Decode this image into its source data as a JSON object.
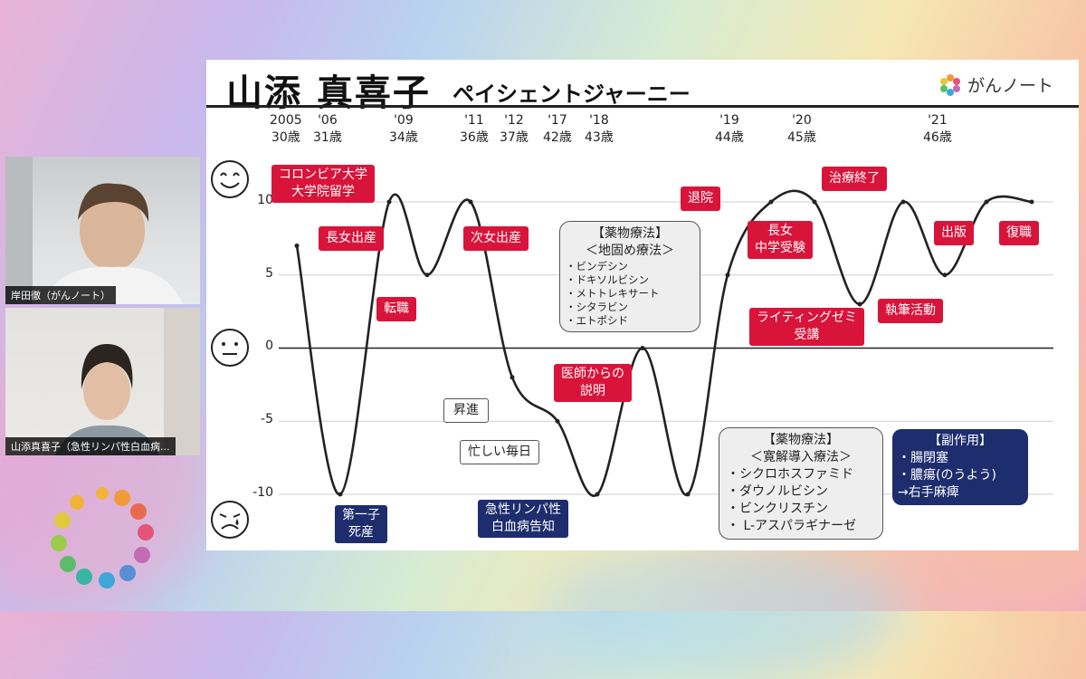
{
  "participants": [
    {
      "name": "岸田徹（がんノート）"
    },
    {
      "name": "山添真喜子（急性リンパ性白血病..."
    }
  ],
  "slide": {
    "title": "山添 真喜子",
    "subtitle": "ペイシェントジャーニー",
    "brand": "がんノート"
  },
  "chart_data": {
    "type": "line",
    "ylim": [
      -10,
      10
    ],
    "y_ticks": [
      "10",
      "5",
      "0",
      "-5",
      "-10"
    ],
    "year_labels": [
      {
        "year": "2005",
        "age": "30歳"
      },
      {
        "year": "'06",
        "age": "31歳"
      },
      {
        "year": "'09",
        "age": "34歳"
      },
      {
        "year": "'11",
        "age": "36歳"
      },
      {
        "year": "'12",
        "age": "37歳"
      },
      {
        "year": "'17",
        "age": "42歳"
      },
      {
        "year": "'18",
        "age": "43歳"
      },
      {
        "year": "'19",
        "age": "44歳"
      },
      {
        "year": "'20",
        "age": "45歳"
      },
      {
        "year": "'21",
        "age": "46歳"
      }
    ],
    "points": [
      {
        "x": 0,
        "y": 7
      },
      {
        "x": 1,
        "y": -10
      },
      {
        "x": 2,
        "y": 10
      },
      {
        "x": 3,
        "y": 5
      },
      {
        "x": 4,
        "y": 10
      },
      {
        "x": 5,
        "y": -2
      },
      {
        "x": 6,
        "y": -5
      },
      {
        "x": 7,
        "y": -10
      },
      {
        "x": 8,
        "y": 0
      },
      {
        "x": 9,
        "y": -10
      },
      {
        "x": 10,
        "y": 5
      },
      {
        "x": 11,
        "y": 10
      },
      {
        "x": 12,
        "y": 10
      },
      {
        "x": 13,
        "y": 3
      },
      {
        "x": 14,
        "y": 10
      },
      {
        "x": 15,
        "y": 5
      },
      {
        "x": 16,
        "y": 10
      },
      {
        "x": 17,
        "y": 10
      }
    ],
    "events": {
      "colombia": [
        "コロンビア大学",
        "大学院留学"
      ],
      "first_daughter": "長女出産",
      "job_change": "転職",
      "second_daughter": "次女出産",
      "promotion": "昇進",
      "busy": "忙しい毎日",
      "stillbirth": [
        "第一子",
        "死産"
      ],
      "leukemia": [
        "急性リンパ性",
        "白血病告知"
      ],
      "doctor": [
        "医師からの",
        "説明"
      ],
      "discharge": "退院",
      "exam": [
        "長女",
        "中学受験"
      ],
      "treatment_end": "治療終了",
      "writing_seminar": [
        "ライティングゼミ",
        "受講"
      ],
      "writing": "執筆活動",
      "publish": "出版",
      "return_work": "復職"
    },
    "drug_box_1": {
      "heading": [
        "【薬物療法】",
        "＜地固め療法＞"
      ],
      "items": [
        "・ビンデシン",
        "・ドキソルビシン",
        "・メトトレキサート",
        "・シタラビン",
        "・エトポシド"
      ]
    },
    "drug_box_2": {
      "heading": [
        "【薬物療法】",
        "＜寛解導入療法＞"
      ],
      "items": [
        "・シクロホスファミド",
        "・ダウノルビシン",
        "・ビンクリスチン",
        "・ L-アスパラギナーゼ"
      ]
    },
    "side_effects": {
      "heading": "【副作用】",
      "items": [
        "・腸閉塞",
        "・膿瘍(のうよう)",
        "→右手麻痺"
      ]
    }
  },
  "colors": {
    "red_label": "#d9143a",
    "navy_label": "#1d2d6e",
    "gray_box": "#eeeeee"
  }
}
